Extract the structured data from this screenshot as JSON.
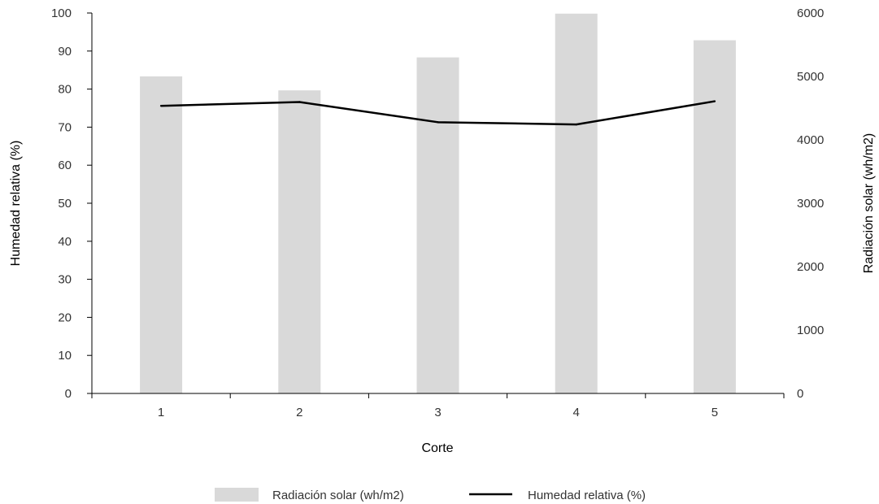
{
  "chart_data": {
    "type": "bar",
    "xlabel": "Corte",
    "categories": [
      "1",
      "2",
      "3",
      "4",
      "5"
    ],
    "y_left": {
      "label": "Humedad relativa (%)",
      "range": [
        0,
        100
      ],
      "ticks": [
        "0",
        "10",
        "20",
        "30",
        "40",
        "50",
        "60",
        "70",
        "80",
        "90",
        "100"
      ]
    },
    "y_right": {
      "label": "Radiación solar (wh/m2)",
      "range": [
        0,
        6000
      ],
      "ticks": [
        "0",
        "1000",
        "2000",
        "3000",
        "4000",
        "5000",
        "6000"
      ]
    },
    "series": [
      {
        "name": "Radiación solar (wh/m2)",
        "kind": "bar",
        "axis": "right",
        "color": "#d9d9d9",
        "values": [
          5000,
          4780,
          5300,
          5990,
          5570
        ]
      },
      {
        "name": "Humedad relativa (%)",
        "kind": "line",
        "axis": "left",
        "color": "#000000",
        "values": [
          75.6,
          76.6,
          71.3,
          70.7,
          76.8
        ]
      }
    ],
    "grid": false,
    "legend_position": "bottom"
  }
}
